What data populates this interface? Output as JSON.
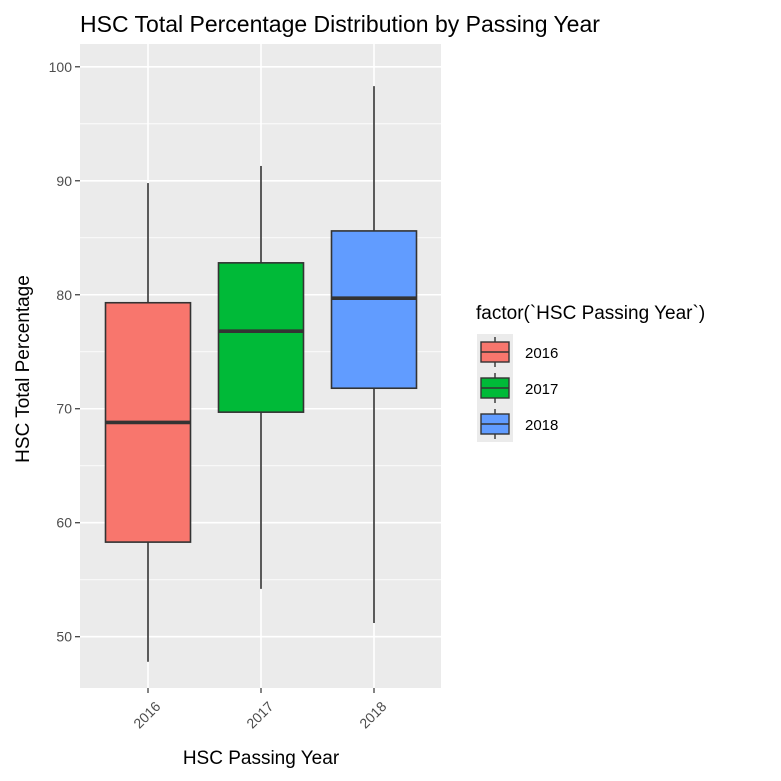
{
  "chart_data": {
    "type": "boxplot",
    "title": "HSC Total Percentage Distribution by Passing Year",
    "xlabel": "HSC Passing Year",
    "ylabel": "HSC Total Percentage",
    "ylim": [
      45.5,
      102
    ],
    "yticks": [
      50,
      60,
      70,
      80,
      90,
      100
    ],
    "categories": [
      "2016",
      "2017",
      "2018"
    ],
    "boxes": [
      {
        "category": "2016",
        "min": 47.8,
        "q1": 58.3,
        "median": 68.8,
        "q3": 79.3,
        "max": 89.8,
        "color": "#F8766D"
      },
      {
        "category": "2017",
        "min": 54.2,
        "q1": 69.7,
        "median": 76.8,
        "q3": 82.8,
        "max": 91.3,
        "color": "#00BA38"
      },
      {
        "category": "2018",
        "min": 51.2,
        "q1": 71.8,
        "median": 79.7,
        "q3": 85.6,
        "max": 98.3,
        "color": "#619CFF"
      }
    ],
    "legend": {
      "title": "factor(`HSC Passing Year`)",
      "position": "right",
      "items": [
        "2016",
        "2017",
        "2018"
      ]
    },
    "grid": true,
    "panel_background": "#EBEBEB",
    "grid_color": "#FFFFFF"
  }
}
